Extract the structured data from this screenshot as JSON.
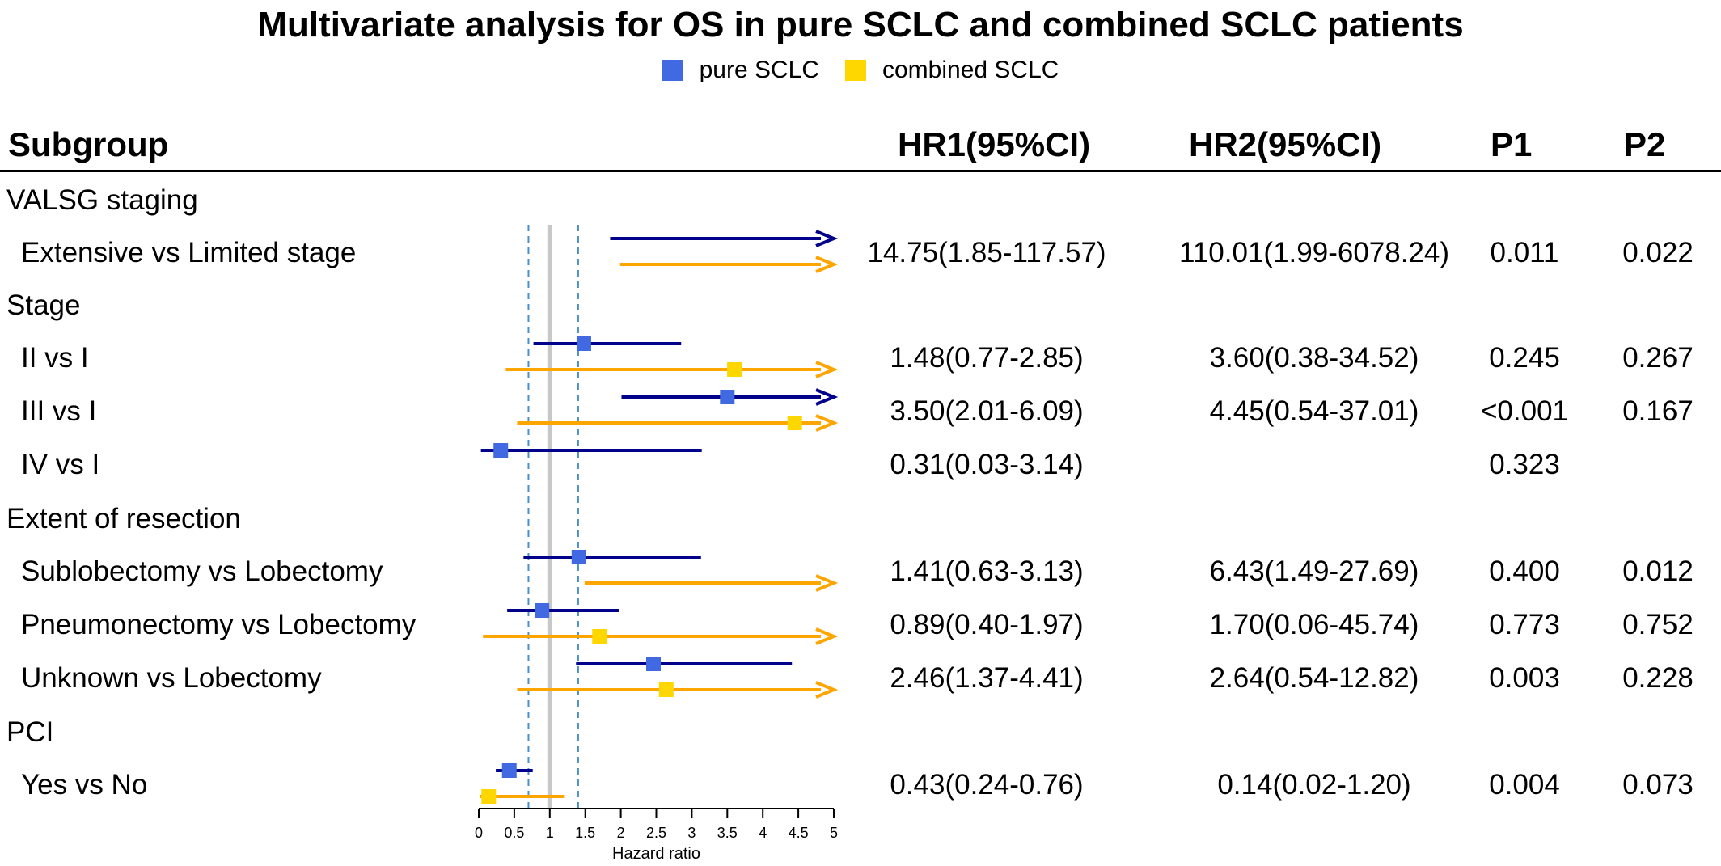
{
  "chart_data": {
    "type": "forest",
    "title": "Multivariate analysis for OS in pure SCLC and combined SCLC patients",
    "legend": [
      {
        "name": "pure SCLC",
        "color": "#4169e1"
      },
      {
        "name": "combined SCLC",
        "color": "#ffd700"
      }
    ],
    "columns": {
      "subgroup": "Subgroup",
      "hr1": "HR1(95%CI)",
      "hr2": "HR2(95%CI)",
      "p1": "P1",
      "p2": "P2"
    },
    "xlabel": "Hazard ratio",
    "xlim": [
      0,
      5
    ],
    "xticks": [
      "0",
      "0.5",
      "1",
      "1.5",
      "2",
      "2.5",
      "3",
      "3.5",
      "4",
      "4.5",
      "5"
    ],
    "reference_line": 1,
    "dashed_lines": [
      0.7,
      1.4
    ],
    "colors": {
      "pure_line": "#00008b",
      "pure_box": "#4169e1",
      "combined_line": "#ffa500",
      "combined_box": "#ffd700",
      "reference": "#c8c8c8",
      "dashed": "#4a90c8"
    },
    "groups": [
      {
        "label": "VALSG staging",
        "items": [
          {
            "label": "Extensive vs Limited stage",
            "hr1": "14.75(1.85-117.57)",
            "hr2": "110.01(1.99-6078.24)",
            "p1": "0.011",
            "p2": "0.022",
            "pure": {
              "hr": 14.75,
              "lo": 1.85,
              "hi": 117.57
            },
            "combined": {
              "hr": 110.01,
              "lo": 1.99,
              "hi": 6078.24
            }
          }
        ]
      },
      {
        "label": "Stage",
        "items": [
          {
            "label": "II vs I",
            "hr1": "1.48(0.77-2.85)",
            "hr2": "3.60(0.38-34.52)",
            "p1": "0.245",
            "p2": "0.267",
            "pure": {
              "hr": 1.48,
              "lo": 0.77,
              "hi": 2.85
            },
            "combined": {
              "hr": 3.6,
              "lo": 0.38,
              "hi": 34.52
            }
          },
          {
            "label": "III vs I",
            "hr1": "3.50(2.01-6.09)",
            "hr2": "4.45(0.54-37.01)",
            "p1": "<0.001",
            "p2": "0.167",
            "pure": {
              "hr": 3.5,
              "lo": 2.01,
              "hi": 6.09
            },
            "combined": {
              "hr": 4.45,
              "lo": 0.54,
              "hi": 37.01
            }
          },
          {
            "label": "IV vs I",
            "hr1": "0.31(0.03-3.14)",
            "hr2": "",
            "p1": "0.323",
            "p2": "",
            "pure": {
              "hr": 0.31,
              "lo": 0.03,
              "hi": 3.14
            },
            "combined": null
          }
        ]
      },
      {
        "label": "Extent of resection",
        "items": [
          {
            "label": "Sublobectomy vs Lobectomy",
            "hr1": "1.41(0.63-3.13)",
            "hr2": "6.43(1.49-27.69)",
            "p1": "0.400",
            "p2": "0.012",
            "pure": {
              "hr": 1.41,
              "lo": 0.63,
              "hi": 3.13
            },
            "combined": {
              "hr": 6.43,
              "lo": 1.49,
              "hi": 27.69
            }
          },
          {
            "label": "Pneumonectomy vs Lobectomy",
            "hr1": "0.89(0.40-1.97)",
            "hr2": "1.70(0.06-45.74)",
            "p1": "0.773",
            "p2": "0.752",
            "pure": {
              "hr": 0.89,
              "lo": 0.4,
              "hi": 1.97
            },
            "combined": {
              "hr": 1.7,
              "lo": 0.06,
              "hi": 45.74
            }
          },
          {
            "label": "Unknown vs Lobectomy",
            "hr1": "2.46(1.37-4.41)",
            "hr2": "2.64(0.54-12.82)",
            "p1": "0.003",
            "p2": "0.228",
            "pure": {
              "hr": 2.46,
              "lo": 1.37,
              "hi": 4.41
            },
            "combined": {
              "hr": 2.64,
              "lo": 0.54,
              "hi": 12.82
            }
          }
        ]
      },
      {
        "label": "PCI",
        "items": [
          {
            "label": "Yes vs No",
            "hr1": "0.43(0.24-0.76)",
            "hr2": "0.14(0.02-1.20)",
            "p1": "0.004",
            "p2": "0.073",
            "pure": {
              "hr": 0.43,
              "lo": 0.24,
              "hi": 0.76
            },
            "combined": {
              "hr": 0.14,
              "lo": 0.02,
              "hi": 1.2
            }
          }
        ]
      }
    ]
  }
}
